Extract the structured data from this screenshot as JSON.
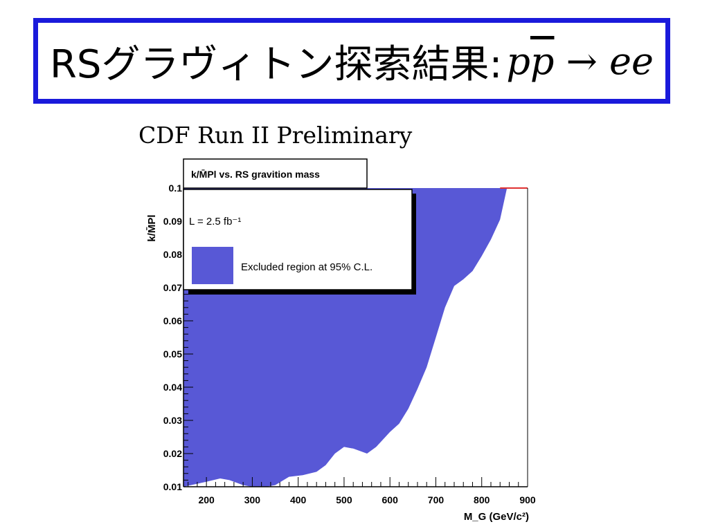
{
  "slide": {
    "title_text": "RSグラヴィトン探索結果:",
    "title_formula_p": "p",
    "title_formula_pbar": "p",
    "title_formula_rest": " → ee"
  },
  "plot_heading": "CDF Run II Preliminary",
  "colors": {
    "excluded": "#5858d6",
    "title_border": "#1a1adb",
    "limit_line": "#e03030"
  },
  "chart_data": {
    "type": "area",
    "title": "k/M̄Pl vs. RS gravition mass",
    "xlabel": "M_G (GeV/c²)",
    "ylabel": "k/M̄Pl",
    "xlim": [
      150,
      900
    ],
    "ylim": [
      0.01,
      0.1
    ],
    "x_ticks": [
      "200",
      "300",
      "400",
      "500",
      "600",
      "700",
      "800",
      "900"
    ],
    "y_ticks": [
      "0.01",
      "0.02",
      "0.03",
      "0.04",
      "0.05",
      "0.06",
      "0.07",
      "0.08",
      "0.09",
      "0.1"
    ],
    "grid": false,
    "legend": {
      "placement": "top-left",
      "luminosity": "L = 2.5 fb⁻¹",
      "entry": "Excluded region at 95% C.L."
    },
    "series": [
      {
        "name": "Excluded region at 95% C.L.",
        "fill": "below-upper-boundary",
        "upper_boundary": {
          "x": [
            150,
            600,
            620,
            640,
            660,
            680,
            700,
            720,
            740,
            760,
            770,
            780,
            800,
            820,
            840,
            860,
            900
          ],
          "y": [
            0.1,
            0.1,
            0.1,
            0.1,
            0.1,
            0.1,
            0.1,
            0.1,
            0.1,
            0.1,
            0.1,
            0.1,
            0.1,
            0.1,
            0.1,
            0.1,
            0.1
          ]
        },
        "lower_boundary": {
          "x": [
            150,
            200,
            230,
            250,
            280,
            300,
            330,
            350,
            380,
            410,
            440,
            460,
            480,
            500,
            520,
            550,
            570,
            600,
            620,
            640,
            660,
            680,
            700,
            720,
            740,
            760,
            780,
            800,
            820,
            840,
            855,
            900
          ],
          "y": [
            0.01,
            0.0115,
            0.0125,
            0.012,
            0.0105,
            0.01,
            0.01,
            0.0105,
            0.013,
            0.0135,
            0.0145,
            0.0165,
            0.02,
            0.022,
            0.0215,
            0.02,
            0.022,
            0.0265,
            0.029,
            0.0335,
            0.0395,
            0.046,
            0.055,
            0.064,
            0.0705,
            0.0725,
            0.075,
            0.0795,
            0.0845,
            0.0905,
            0.1,
            0.1
          ]
        }
      }
    ]
  }
}
